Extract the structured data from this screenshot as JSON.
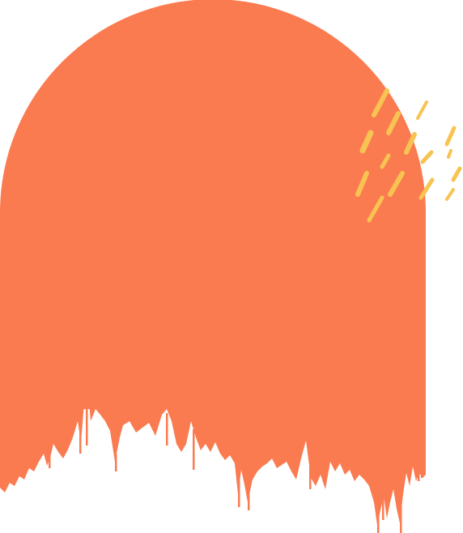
{
  "colors": {
    "background": "#ffffff",
    "arch": "#fb7b51",
    "strokes": "#f7c452"
  },
  "shapes": {
    "arch": "brush-arch",
    "accent": "brush-dash-strokes"
  }
}
